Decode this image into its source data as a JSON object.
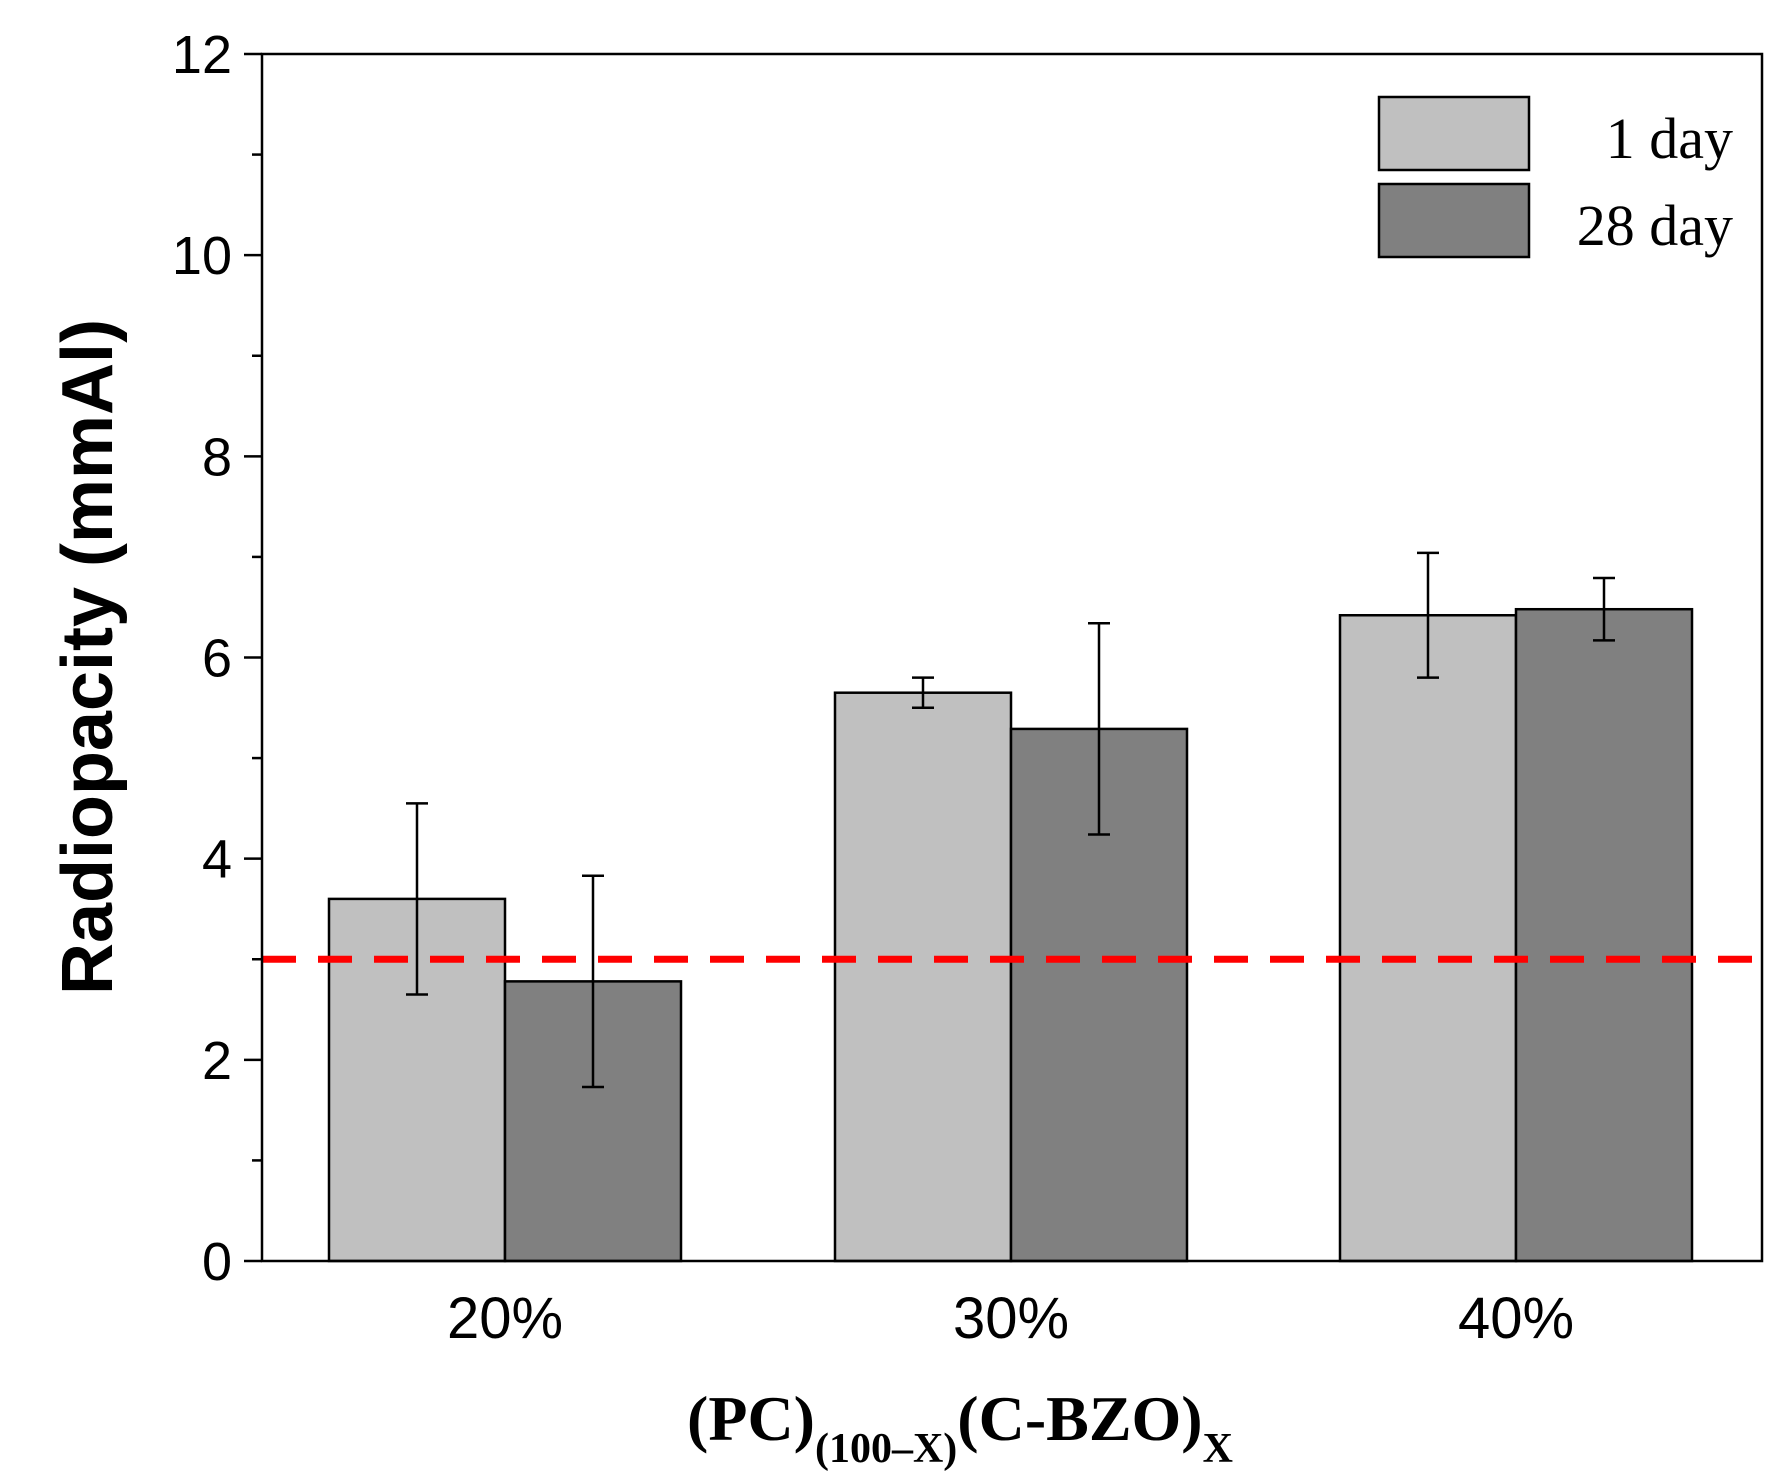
{
  "chart_data": {
    "type": "bar",
    "categories": [
      "20%",
      "30%",
      "40%"
    ],
    "series": [
      {
        "name": "1 day",
        "values": [
          3.6,
          5.65,
          6.42
        ],
        "errors": [
          0.95,
          0.15,
          0.62
        ],
        "color": "#c0c0c0"
      },
      {
        "name": "28 day",
        "values": [
          2.78,
          5.29,
          6.48
        ],
        "errors": [
          1.05,
          1.05,
          0.31
        ],
        "color": "#808080"
      }
    ],
    "reference_line": {
      "value": 3,
      "color": "#ff0000",
      "style": "dashed"
    },
    "ylabel": "Radiopacity (mmAl)",
    "xlabel": {
      "base1": "(PC)",
      "sub1": "(100–X)",
      "base2": "(C-BZO)",
      "sub2": "X"
    },
    "ylim": [
      0,
      12
    ],
    "yticks": [
      0,
      2,
      4,
      6,
      8,
      10,
      12
    ],
    "legend_position": "top-right",
    "grid": false
  }
}
